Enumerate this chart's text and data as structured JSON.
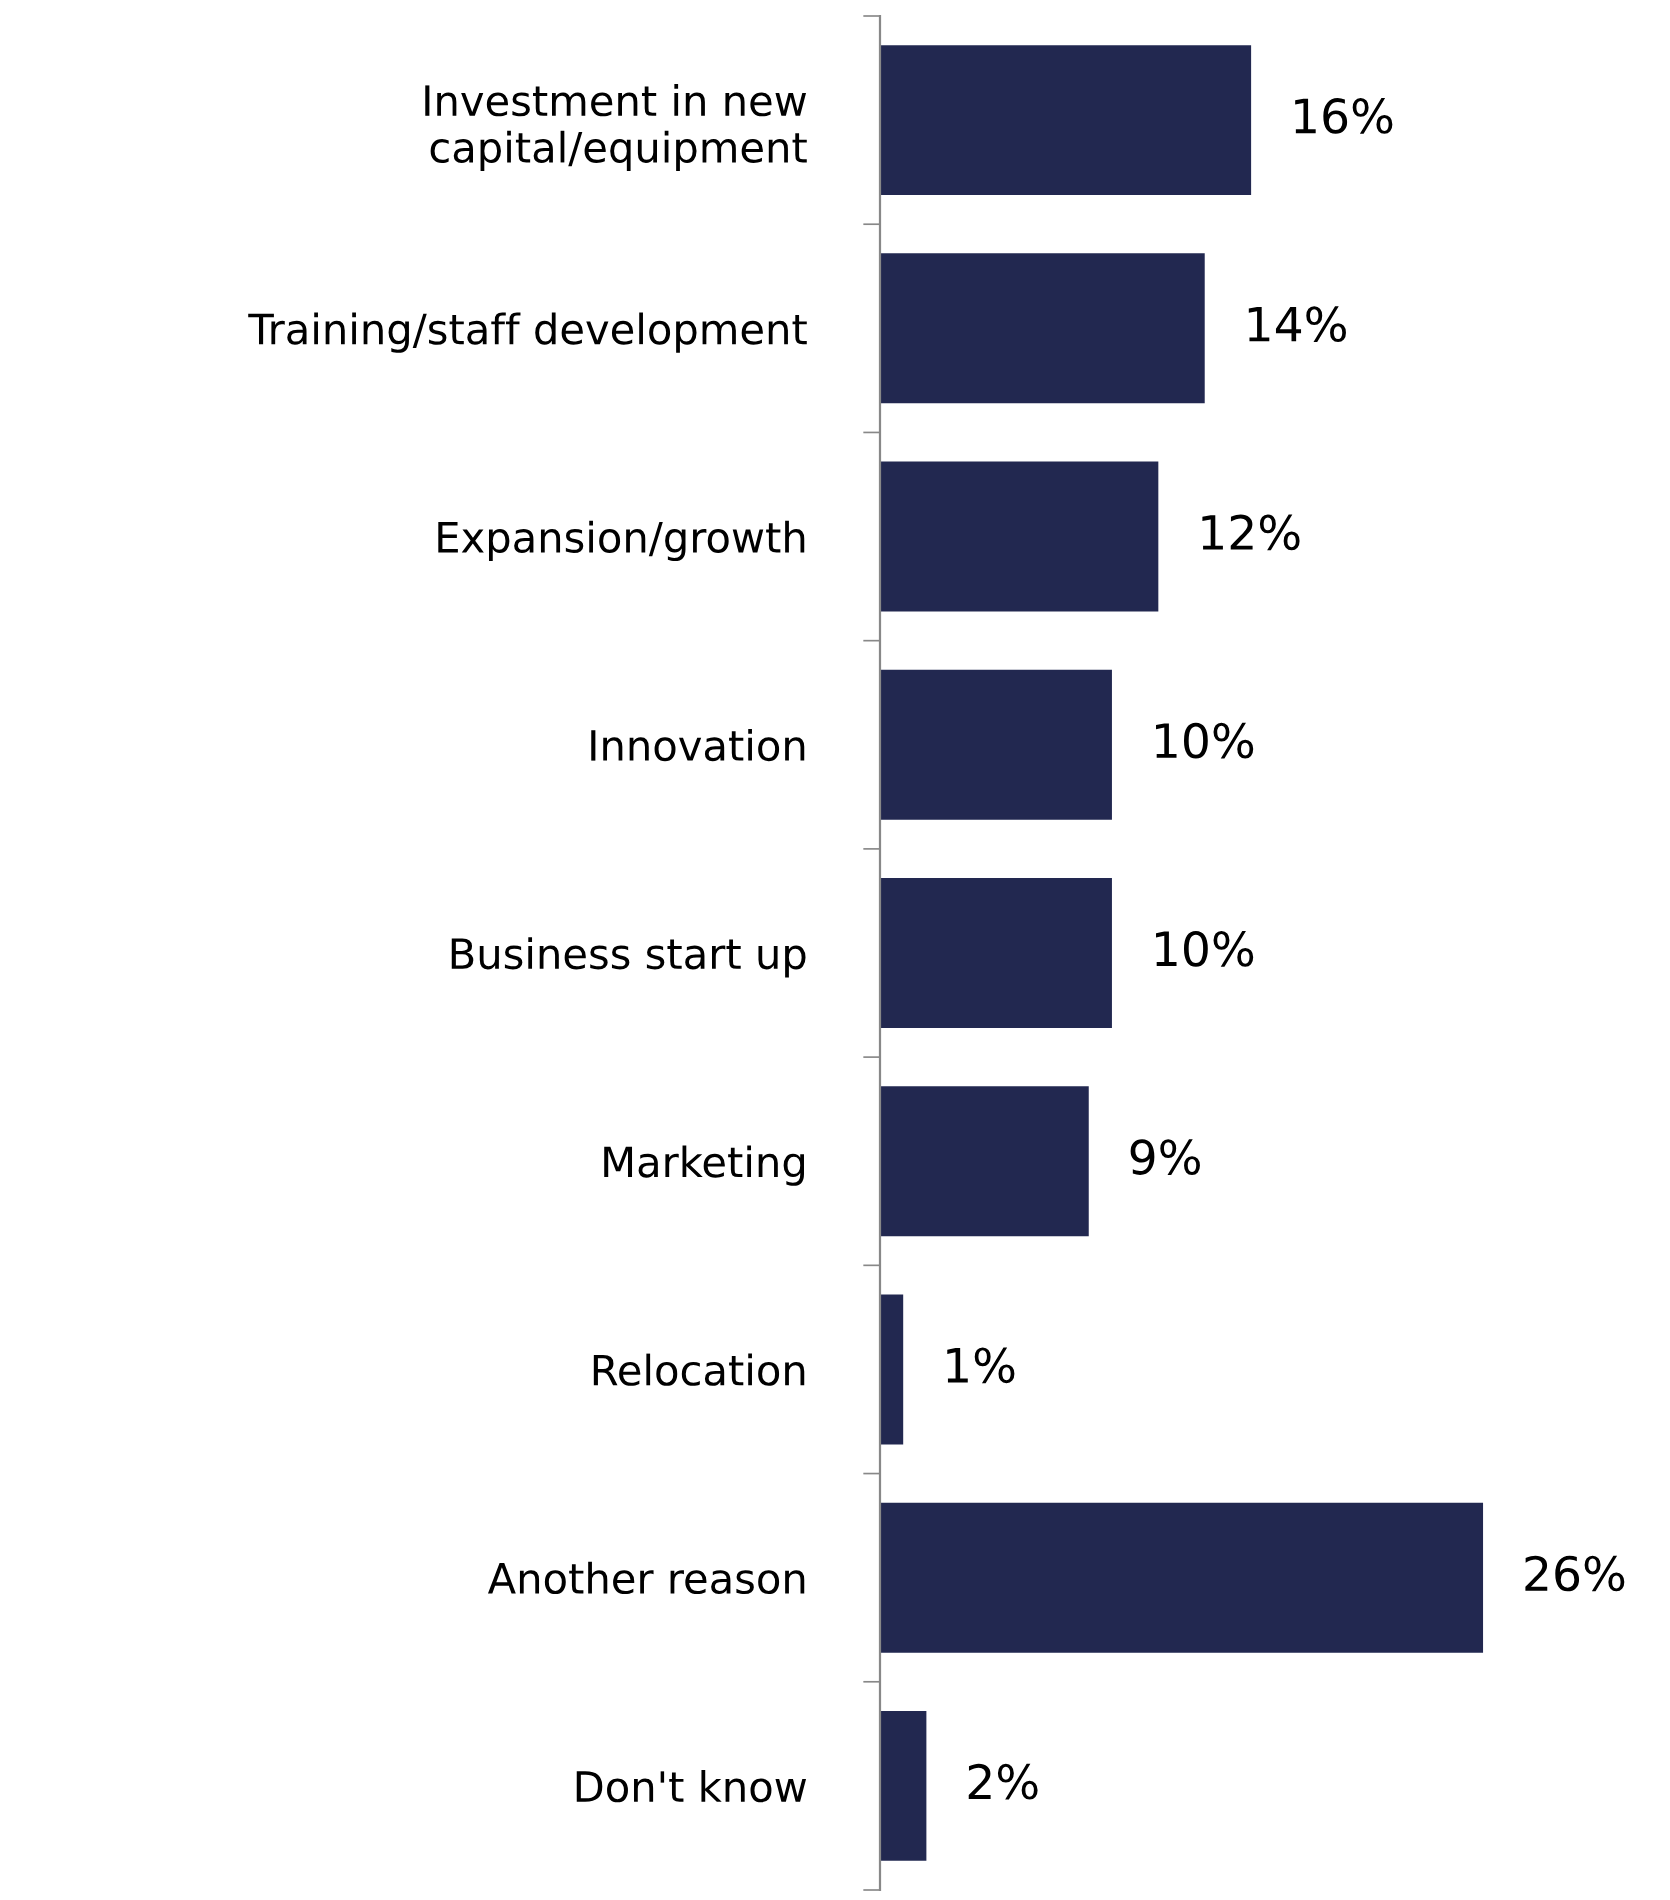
{
  "chart_data": {
    "type": "bar",
    "orientation": "horizontal",
    "categories": [
      "Investment in new\ncapital/equipment",
      "Training/staff development",
      "Expansion/growth",
      "Innovation",
      "Business start up",
      "Marketing",
      "Relocation",
      "Another reason",
      "Don't know"
    ],
    "values": [
      16,
      14,
      12,
      10,
      10,
      9,
      1,
      26,
      2
    ],
    "value_labels": [
      "16%",
      "14%",
      "12%",
      "10%",
      "10%",
      "9%",
      "1%",
      "26%",
      "2%"
    ],
    "color": "#222850",
    "grid": false,
    "legend": false
  }
}
